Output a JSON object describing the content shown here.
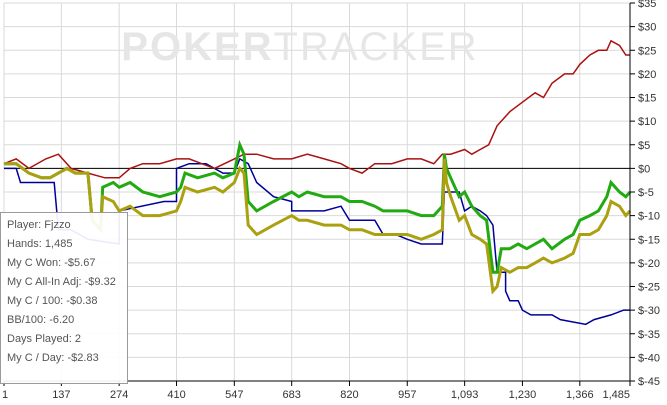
{
  "watermark": {
    "part1": "POKER",
    "part2": "TRACKER"
  },
  "stats": {
    "player": "Player: Fjzzo",
    "hands": "Hands: 1,485",
    "c_won": "My C Won: -$5.67",
    "allin_adj": "My C All-In Adj: -$9.32",
    "c_per_100": "My C / 100: -$0.38",
    "bb_per_100": "BB/100: -6.20",
    "days_played": "Days Played: 2",
    "c_per_day": "My C / Day: -$2.83"
  },
  "colors": {
    "grid": "#d9d9d9",
    "zero_line": "#000000",
    "axis": "#000000",
    "watermark": "#e6e6e6"
  },
  "chart_data": {
    "type": "line",
    "x_ticks": [
      1,
      137,
      274,
      410,
      547,
      683,
      820,
      957,
      1093,
      1230,
      1366,
      1485
    ],
    "x_tick_labels": [
      "1",
      "137",
      "274",
      "410",
      "547",
      "683",
      "820",
      "957",
      "1,093",
      "1,230",
      "1,366",
      "1,485"
    ],
    "y_ticks": [
      35,
      30,
      25,
      20,
      15,
      10,
      5,
      0,
      -5,
      -10,
      -15,
      -20,
      -25,
      -30,
      -35,
      -40,
      -45
    ],
    "y_tick_labels": [
      "$35",
      "$30",
      "$25",
      "$20",
      "$15",
      "$10",
      "$5",
      "$0",
      "$-5",
      "$-10",
      "$-15",
      "$-20",
      "$-25",
      "$-30",
      "$-35",
      "$-40",
      "$-45"
    ],
    "xlim": [
      1,
      1485
    ],
    "ylim": [
      -45,
      35
    ],
    "y_axis_side": "right",
    "grid": true,
    "series": [
      {
        "color": "#000099",
        "width": 1.5,
        "points": [
          [
            1,
            0
          ],
          [
            30,
            0
          ],
          [
            40,
            -3
          ],
          [
            120,
            -3
          ],
          [
            130,
            -13
          ],
          [
            160,
            -13
          ],
          [
            200,
            -15
          ],
          [
            274,
            -16
          ],
          [
            274,
            -9
          ],
          [
            380,
            -7
          ],
          [
            410,
            -7
          ],
          [
            410,
            0
          ],
          [
            440,
            1
          ],
          [
            480,
            1
          ],
          [
            520,
            -1
          ],
          [
            547,
            -1
          ],
          [
            560,
            2
          ],
          [
            580,
            1
          ],
          [
            600,
            -3
          ],
          [
            640,
            -6
          ],
          [
            683,
            -7
          ],
          [
            683,
            -9
          ],
          [
            720,
            -9
          ],
          [
            760,
            -9
          ],
          [
            800,
            -8
          ],
          [
            820,
            -11
          ],
          [
            850,
            -11
          ],
          [
            880,
            -11
          ],
          [
            900,
            -14
          ],
          [
            930,
            -14
          ],
          [
            957,
            -15
          ],
          [
            990,
            -16
          ],
          [
            1040,
            -16
          ],
          [
            1045,
            -5
          ],
          [
            1080,
            -5
          ],
          [
            1093,
            -9
          ],
          [
            1110,
            -8
          ],
          [
            1130,
            -9
          ],
          [
            1145,
            -10
          ],
          [
            1160,
            -12
          ],
          [
            1170,
            -22
          ],
          [
            1190,
            -22
          ],
          [
            1190,
            -26
          ],
          [
            1200,
            -28
          ],
          [
            1220,
            -28
          ],
          [
            1230,
            -30
          ],
          [
            1250,
            -31
          ],
          [
            1300,
            -31
          ],
          [
            1320,
            -32
          ],
          [
            1380,
            -33
          ],
          [
            1400,
            -32
          ],
          [
            1440,
            -31
          ],
          [
            1470,
            -30
          ],
          [
            1485,
            -30
          ]
        ]
      },
      {
        "color": "#aa1111",
        "width": 1.5,
        "points": [
          [
            1,
            1
          ],
          [
            30,
            2
          ],
          [
            60,
            0
          ],
          [
            100,
            2
          ],
          [
            130,
            3
          ],
          [
            160,
            0
          ],
          [
            200,
            -1
          ],
          [
            240,
            -2
          ],
          [
            274,
            -2
          ],
          [
            300,
            0
          ],
          [
            330,
            1
          ],
          [
            370,
            1
          ],
          [
            410,
            2
          ],
          [
            440,
            2
          ],
          [
            470,
            1
          ],
          [
            500,
            0
          ],
          [
            547,
            2
          ],
          [
            570,
            3
          ],
          [
            600,
            3
          ],
          [
            640,
            2
          ],
          [
            683,
            2
          ],
          [
            720,
            3
          ],
          [
            760,
            2
          ],
          [
            800,
            1
          ],
          [
            820,
            0
          ],
          [
            850,
            -1
          ],
          [
            880,
            1
          ],
          [
            920,
            1
          ],
          [
            957,
            2
          ],
          [
            990,
            2
          ],
          [
            1020,
            1
          ],
          [
            1040,
            3
          ],
          [
            1060,
            3
          ],
          [
            1093,
            4
          ],
          [
            1110,
            3
          ],
          [
            1130,
            4
          ],
          [
            1150,
            5
          ],
          [
            1170,
            9
          ],
          [
            1200,
            12
          ],
          [
            1230,
            14
          ],
          [
            1260,
            16
          ],
          [
            1280,
            15
          ],
          [
            1300,
            18
          ],
          [
            1330,
            20
          ],
          [
            1350,
            20
          ],
          [
            1366,
            22
          ],
          [
            1390,
            24
          ],
          [
            1410,
            25
          ],
          [
            1430,
            25
          ],
          [
            1440,
            27
          ],
          [
            1460,
            26
          ],
          [
            1475,
            24
          ],
          [
            1485,
            24
          ]
        ]
      },
      {
        "color": "#22aa11",
        "width": 3,
        "points": [
          [
            1,
            1
          ],
          [
            30,
            1
          ],
          [
            60,
            -1
          ],
          [
            90,
            -2
          ],
          [
            110,
            -2
          ],
          [
            130,
            -1
          ],
          [
            150,
            0
          ],
          [
            170,
            -1
          ],
          [
            200,
            -1
          ],
          [
            210,
            -11
          ],
          [
            230,
            -13
          ],
          [
            235,
            -4
          ],
          [
            260,
            -3
          ],
          [
            274,
            -4
          ],
          [
            300,
            -3
          ],
          [
            330,
            -5
          ],
          [
            370,
            -6
          ],
          [
            410,
            -5
          ],
          [
            420,
            -4
          ],
          [
            430,
            -1
          ],
          [
            460,
            -2
          ],
          [
            500,
            -1
          ],
          [
            520,
            -2
          ],
          [
            547,
            -1
          ],
          [
            560,
            5
          ],
          [
            570,
            3
          ],
          [
            580,
            -7
          ],
          [
            600,
            -9
          ],
          [
            640,
            -7
          ],
          [
            683,
            -5
          ],
          [
            700,
            -6
          ],
          [
            720,
            -5
          ],
          [
            760,
            -6
          ],
          [
            800,
            -6
          ],
          [
            820,
            -7
          ],
          [
            850,
            -7
          ],
          [
            880,
            -8
          ],
          [
            900,
            -9
          ],
          [
            930,
            -9
          ],
          [
            957,
            -9
          ],
          [
            990,
            -10
          ],
          [
            1020,
            -10
          ],
          [
            1040,
            -8
          ],
          [
            1045,
            3
          ],
          [
            1050,
            0
          ],
          [
            1060,
            -2
          ],
          [
            1080,
            -6
          ],
          [
            1093,
            -5
          ],
          [
            1110,
            -8
          ],
          [
            1130,
            -10
          ],
          [
            1145,
            -11
          ],
          [
            1160,
            -22
          ],
          [
            1170,
            -22
          ],
          [
            1180,
            -17
          ],
          [
            1200,
            -17
          ],
          [
            1220,
            -16
          ],
          [
            1240,
            -17
          ],
          [
            1260,
            -16
          ],
          [
            1280,
            -15
          ],
          [
            1300,
            -17
          ],
          [
            1330,
            -15
          ],
          [
            1350,
            -14
          ],
          [
            1366,
            -11
          ],
          [
            1390,
            -10
          ],
          [
            1410,
            -9
          ],
          [
            1430,
            -6
          ],
          [
            1440,
            -3
          ],
          [
            1460,
            -5
          ],
          [
            1475,
            -6
          ],
          [
            1485,
            -5
          ]
        ]
      },
      {
        "color": "#aaa010",
        "width": 3,
        "points": [
          [
            1,
            1
          ],
          [
            30,
            1
          ],
          [
            60,
            -1
          ],
          [
            90,
            -2
          ],
          [
            110,
            -2
          ],
          [
            130,
            -1
          ],
          [
            150,
            0
          ],
          [
            170,
            -1
          ],
          [
            200,
            -1
          ],
          [
            210,
            -11
          ],
          [
            230,
            -13
          ],
          [
            235,
            -6
          ],
          [
            260,
            -7
          ],
          [
            274,
            -9
          ],
          [
            300,
            -8
          ],
          [
            330,
            -10
          ],
          [
            370,
            -10
          ],
          [
            410,
            -9
          ],
          [
            420,
            -7
          ],
          [
            430,
            -4
          ],
          [
            460,
            -5
          ],
          [
            500,
            -4
          ],
          [
            520,
            -5
          ],
          [
            547,
            -3
          ],
          [
            560,
            0
          ],
          [
            570,
            -1
          ],
          [
            580,
            -12
          ],
          [
            600,
            -14
          ],
          [
            640,
            -12
          ],
          [
            683,
            -10
          ],
          [
            700,
            -11
          ],
          [
            720,
            -11
          ],
          [
            760,
            -12
          ],
          [
            800,
            -12
          ],
          [
            820,
            -13
          ],
          [
            850,
            -13
          ],
          [
            880,
            -14
          ],
          [
            900,
            -14
          ],
          [
            930,
            -14
          ],
          [
            957,
            -14
          ],
          [
            990,
            -15
          ],
          [
            1020,
            -14
          ],
          [
            1040,
            -13
          ],
          [
            1045,
            2
          ],
          [
            1050,
            -3
          ],
          [
            1060,
            -6
          ],
          [
            1080,
            -11
          ],
          [
            1093,
            -10
          ],
          [
            1110,
            -14
          ],
          [
            1130,
            -15
          ],
          [
            1145,
            -16
          ],
          [
            1160,
            -26
          ],
          [
            1170,
            -25
          ],
          [
            1180,
            -21
          ],
          [
            1200,
            -22
          ],
          [
            1220,
            -21
          ],
          [
            1240,
            -21
          ],
          [
            1260,
            -20
          ],
          [
            1280,
            -19
          ],
          [
            1300,
            -20
          ],
          [
            1330,
            -19
          ],
          [
            1350,
            -18
          ],
          [
            1366,
            -14
          ],
          [
            1390,
            -14
          ],
          [
            1410,
            -13
          ],
          [
            1430,
            -10
          ],
          [
            1440,
            -7
          ],
          [
            1460,
            -8
          ],
          [
            1475,
            -10
          ],
          [
            1485,
            -9
          ]
        ]
      }
    ]
  }
}
